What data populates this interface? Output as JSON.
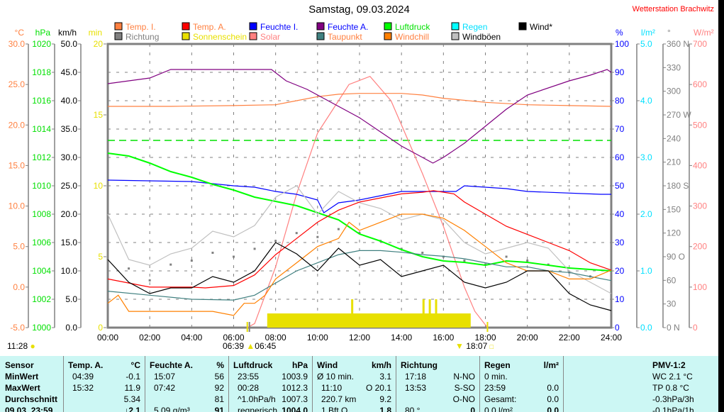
{
  "header": {
    "title": "Samstag, 09.03.2024",
    "station": "Wetterstation Brachwitz"
  },
  "legend": [
    {
      "label": "Temp. I.",
      "box": "#ff8040",
      "text": "#ff8040"
    },
    {
      "label": "Temp. A.",
      "box": "#ff0000",
      "text": "#ff8040"
    },
    {
      "label": "Feuchte I.",
      "box": "#0000ff",
      "text": "#0000ff"
    },
    {
      "label": "Feuchte A.",
      "box": "#800080",
      "text": "#0000ff"
    },
    {
      "label": "Luftdruck",
      "box": "#00ff00",
      "text": "#00e000"
    },
    {
      "label": "Regen",
      "box": "#00ffff",
      "text": "#00e0ff"
    },
    {
      "label": "Wind*",
      "box": "#000000",
      "text": "#000000"
    },
    {
      "label": "Richtung",
      "box": "#808080",
      "text": "#808080"
    },
    {
      "label": "Sonnenschein",
      "box": "#e8e000",
      "text": "#e8e000"
    },
    {
      "label": "Solar",
      "box": "#ff8080",
      "text": "#ff8080"
    },
    {
      "label": "Taupunkt",
      "box": "#408080",
      "text": "#ff8040"
    },
    {
      "label": "Windchill",
      "box": "#ff8000",
      "text": "#ff8040"
    },
    {
      "label": "Windböen",
      "box": "#c0c0c0",
      "text": "#000000"
    }
  ],
  "chart_data": {
    "type": "line",
    "title": "Samstag, 09.03.2024",
    "xlabel": "",
    "xlim": [
      0,
      24
    ],
    "x_ticks": [
      "00:00",
      "02:00",
      "04:00",
      "06:00",
      "08:00",
      "10:00",
      "12:00",
      "14:00",
      "16:00",
      "18:00",
      "20:00",
      "22:00",
      "24:00"
    ],
    "grid": true,
    "axes": [
      {
        "id": "temp",
        "unit": "°C",
        "color": "#ff8040",
        "min": -5,
        "max": 30,
        "ticks": [
          "-5.0",
          "0.0",
          "5.0",
          "10.0",
          "15.0",
          "20.0",
          "25.0",
          "30.0"
        ],
        "side": "left"
      },
      {
        "id": "press",
        "unit": "hPa",
        "color": "#00e000",
        "min": 1000,
        "max": 1020,
        "ticks": [
          "1000",
          "1002",
          "1004",
          "1006",
          "1008",
          "1010",
          "1012",
          "1014",
          "1016",
          "1018",
          "1020"
        ],
        "side": "left"
      },
      {
        "id": "wind",
        "unit": "km/h",
        "color": "#000000",
        "min": 0,
        "max": 50,
        "ticks": [
          "0.0",
          "5.0",
          "10.0",
          "15.0",
          "20.0",
          "25.0",
          "30.0",
          "35.0",
          "40.0",
          "45.0",
          "50.0"
        ],
        "side": "left"
      },
      {
        "id": "min",
        "unit": "min",
        "color": "#e8e000",
        "min": 0,
        "max": 20,
        "ticks": [
          "0",
          "5",
          "10",
          "15",
          "20"
        ],
        "side": "left"
      },
      {
        "id": "hum",
        "unit": "%",
        "color": "#0000ff",
        "min": 0,
        "max": 100,
        "ticks": [
          "0",
          "10",
          "20",
          "30",
          "40",
          "50",
          "60",
          "70",
          "80",
          "90",
          "100"
        ],
        "side": "right"
      },
      {
        "id": "rain",
        "unit": "l/m²",
        "color": "#00e0ff",
        "min": 0,
        "max": 5,
        "ticks": [
          "0.0",
          "1.0",
          "2.0",
          "3.0",
          "4.0",
          "5.0"
        ],
        "side": "right"
      },
      {
        "id": "dir",
        "unit": "°",
        "color": "#808080",
        "min": 0,
        "max": 360,
        "ticks": [
          "0   N",
          "30",
          "60",
          "90  O",
          "120",
          "150",
          "180 S",
          "210",
          "240",
          "270 W",
          "300",
          "330",
          "360 N"
        ],
        "side": "right"
      },
      {
        "id": "solar",
        "unit": "W/m²",
        "color": "#ff8080",
        "min": 0,
        "max": 700,
        "ticks": [
          "0",
          "100",
          "200",
          "300",
          "400",
          "500",
          "600",
          "700"
        ],
        "side": "right"
      }
    ],
    "series": [
      {
        "name": "Solar",
        "axis": "solar",
        "color": "#ff8080",
        "x": [
          6.65,
          7,
          8,
          9,
          10,
          11,
          11.5,
          12,
          12.5,
          13,
          13.5,
          14,
          15,
          16,
          17,
          17.5,
          18.1
        ],
        "y": [
          0,
          10,
          150,
          330,
          480,
          560,
          600,
          610,
          620,
          590,
          560,
          500,
          380,
          250,
          100,
          40,
          0
        ]
      },
      {
        "name": "Temp. I.",
        "axis": "temp",
        "color": "#ff8040",
        "x": [
          0,
          3,
          6,
          8,
          9,
          10,
          11,
          12,
          14,
          15,
          16,
          18,
          20,
          22,
          24
        ],
        "y": [
          22.3,
          22.3,
          22.4,
          22.5,
          23,
          23.5,
          23.8,
          23.9,
          23.9,
          23.7,
          23.3,
          22.8,
          22.5,
          22.4,
          22.3
        ]
      },
      {
        "name": "Feuchte A.",
        "axis": "hum",
        "color": "#800080",
        "x": [
          0,
          1,
          2,
          3,
          5,
          7.8,
          8.5,
          9.5,
          10.5,
          11,
          12,
          13,
          14,
          15,
          15.5,
          16,
          17,
          18,
          19,
          20,
          22,
          23,
          23.8,
          24
        ],
        "y": [
          86,
          87,
          88,
          91,
          91,
          91,
          87,
          84,
          80,
          78,
          74,
          69,
          64,
          60,
          58,
          60,
          65,
          71,
          77,
          82,
          87,
          89,
          91,
          90
        ]
      },
      {
        "name": "Feuchte I.",
        "axis": "hum",
        "color": "#0000ff",
        "x": [
          0,
          4,
          6,
          7,
          8,
          9,
          10,
          10.3,
          11,
          12,
          13,
          14,
          16,
          16.6,
          17,
          19,
          20,
          23.5,
          24
        ],
        "y": [
          52,
          51.5,
          50,
          49.5,
          48,
          47,
          45,
          40.5,
          44,
          45,
          46.5,
          48,
          48,
          48,
          50,
          49,
          48,
          47,
          47
        ]
      },
      {
        "name": "Luftdruck",
        "axis": "press",
        "color": "#00ff00",
        "x": [
          0,
          1,
          2,
          3,
          4,
          5,
          6,
          7,
          8,
          9,
          10,
          11,
          12,
          13,
          14,
          15,
          16,
          17,
          18,
          19,
          20,
          21,
          22,
          23,
          24
        ],
        "y": [
          1012.3,
          1012.1,
          1011.6,
          1011.0,
          1010.6,
          1010.1,
          1009.7,
          1009.2,
          1008.9,
          1008.6,
          1008.1,
          1007.6,
          1006.6,
          1006.1,
          1005.5,
          1005.0,
          1004.7,
          1004.6,
          1004.4,
          1004.7,
          1004.6,
          1004.4,
          1004.2,
          1004.1,
          1004.0
        ]
      },
      {
        "name": "Windböen",
        "axis": "wind",
        "color": "#c0c0c0",
        "x": [
          0,
          1,
          2,
          3,
          4,
          5,
          6,
          7,
          8,
          9,
          10,
          11,
          12,
          13,
          14,
          15,
          16,
          17,
          18,
          19,
          20,
          21,
          22,
          23,
          24
        ],
        "y": [
          20,
          12,
          11,
          13,
          14,
          17,
          16,
          18,
          23,
          25,
          20,
          24,
          22,
          21,
          19,
          20,
          19,
          15,
          13,
          14,
          15,
          14,
          10,
          8,
          6
        ]
      },
      {
        "name": "Taupunkt",
        "axis": "temp",
        "color": "#408080",
        "x": [
          0,
          2,
          4,
          6,
          7,
          8,
          9,
          10,
          11,
          12,
          13,
          14,
          15,
          16,
          17,
          18,
          19,
          20,
          21,
          22,
          23,
          24
        ],
        "y": [
          -0.5,
          -1,
          -1.5,
          -1.6,
          -1,
          0.5,
          2,
          3,
          4,
          4.5,
          4.5,
          4.3,
          4,
          3.8,
          3.5,
          3,
          2.5,
          2.5,
          2,
          1.8,
          1.3,
          0.8
        ]
      },
      {
        "name": "Windchill",
        "axis": "temp",
        "color": "#ff8000",
        "x": [
          0,
          0.5,
          1,
          2,
          3,
          4,
          5,
          6,
          6.5,
          7,
          7.5,
          8,
          9,
          10,
          11,
          11.5,
          12,
          13,
          14,
          15,
          16,
          17,
          18,
          19,
          20,
          21,
          22,
          23,
          24
        ],
        "y": [
          -2,
          -1,
          -3,
          -3,
          -3,
          -3,
          -3,
          -3.5,
          -2,
          -2,
          -1,
          1,
          3,
          5,
          6,
          8,
          7,
          8,
          9,
          9,
          8.5,
          7,
          5,
          3,
          2,
          2,
          1,
          1,
          2.1
        ]
      },
      {
        "name": "Temp. A.",
        "axis": "temp",
        "color": "#ff0000",
        "x": [
          0,
          1,
          2,
          4,
          4.65,
          6,
          7,
          8,
          9,
          10,
          11,
          12,
          13,
          14,
          15,
          15.53,
          16.5,
          17,
          18,
          19,
          20,
          21,
          22,
          23,
          24
        ],
        "y": [
          1.0,
          0.5,
          0.0,
          0.0,
          -0.1,
          0.2,
          1.5,
          4,
          6,
          8,
          9.5,
          10.5,
          11,
          11.5,
          11.7,
          11.9,
          11.5,
          10.5,
          9,
          7.5,
          6.5,
          5.5,
          4.5,
          3.0,
          2.1
        ]
      },
      {
        "name": "Wind*",
        "axis": "wind",
        "color": "#000000",
        "x": [
          0,
          1,
          2,
          3,
          4,
          5,
          6,
          7,
          8,
          9,
          10,
          11,
          12,
          13,
          14,
          15,
          16,
          17,
          18,
          19,
          20,
          21,
          22,
          23,
          24
        ],
        "y": [
          12,
          8,
          6,
          7,
          7,
          9,
          8,
          10,
          15,
          13,
          10,
          14,
          11,
          12,
          9,
          10,
          11,
          8,
          7,
          8,
          10,
          10,
          6,
          4,
          3
        ]
      }
    ],
    "richtung": {
      "axis": "dir",
      "color": "#808080",
      "x": [
        0,
        1,
        2,
        3,
        4,
        5,
        6,
        7,
        8,
        9,
        10,
        11,
        12,
        13,
        14,
        15,
        16,
        17,
        18,
        19,
        20,
        21,
        22,
        23,
        24
      ],
      "y": [
        90,
        75,
        60,
        80,
        85,
        95,
        90,
        100,
        110,
        120,
        115,
        125,
        120,
        110,
        100,
        95,
        90,
        85,
        80,
        90,
        85,
        80,
        70,
        65,
        60
      ]
    },
    "sonnenschein": {
      "axis": "min",
      "color": "#e8e000",
      "from": 7.6,
      "to": 17.3,
      "value": 1,
      "spikes": [
        {
          "x": 11.6,
          "y": 2
        },
        {
          "x": 15.0,
          "y": 2
        },
        {
          "x": 15.3,
          "y": 2
        },
        {
          "x": 15.6,
          "y": 2
        }
      ]
    },
    "reference_line": {
      "axis": "press",
      "value": 1013.2,
      "color": "#00e000"
    }
  },
  "sun": {
    "daylength": "11:28",
    "sunrise_civil": "06:39",
    "sunrise": "06:45",
    "sunset": "18:07"
  },
  "table": {
    "sensor": {
      "h": "Sensor",
      "r": [
        "MinWert",
        "MaxWert",
        "Durchschnitt",
        "09.03. 23:59"
      ]
    },
    "temp": {
      "h": "Temp. A.",
      "u": "°C",
      "t": [
        "04:39",
        "15:32",
        "",
        ""
      ],
      "v": [
        "-0.1",
        "11.9",
        "5.34",
        "↓2.1"
      ]
    },
    "hum": {
      "h": "Feuchte A.",
      "u": "%",
      "t": [
        "15:07",
        "07:42",
        "",
        "5.09 g/m³"
      ],
      "v": [
        "56",
        "92",
        "81",
        "91"
      ]
    },
    "press": {
      "h": "Luftdruck",
      "u": "hPa",
      "t": [
        "23:55",
        "00:28",
        "^1.0hPa/h",
        "regnerisch"
      ],
      "v": [
        "1003.9",
        "1012.3",
        "1007.3",
        "1004.0"
      ]
    },
    "wind": {
      "h": "Wind",
      "u": "km/h",
      "t": [
        "Ø 10 min.",
        "11:10",
        "220.7 km",
        "1 Bft O"
      ],
      "v": [
        "3.1",
        "O 20.1",
        "9.2",
        "1.8"
      ]
    },
    "dir": {
      "h": "Richtung",
      "u": "",
      "t": [
        "17:18",
        "13:53",
        "",
        "80 °"
      ],
      "v": [
        "N-NO",
        "S-SO",
        "O-NO",
        "0"
      ]
    },
    "rain": {
      "h": "Regen",
      "u": "l/m²",
      "t": [
        "0 min.",
        "23:59",
        "Gesamt:",
        "0.0 l/m²"
      ],
      "v": [
        "",
        "0.0",
        "0.0",
        "0.0"
      ]
    },
    "pmv": {
      "h": "PMV-1:2",
      "r": [
        "WC 2.1 °C",
        "TP 0.8 °C",
        "-0.3hPa/3h",
        "-0.1hPa/1h"
      ]
    }
  }
}
